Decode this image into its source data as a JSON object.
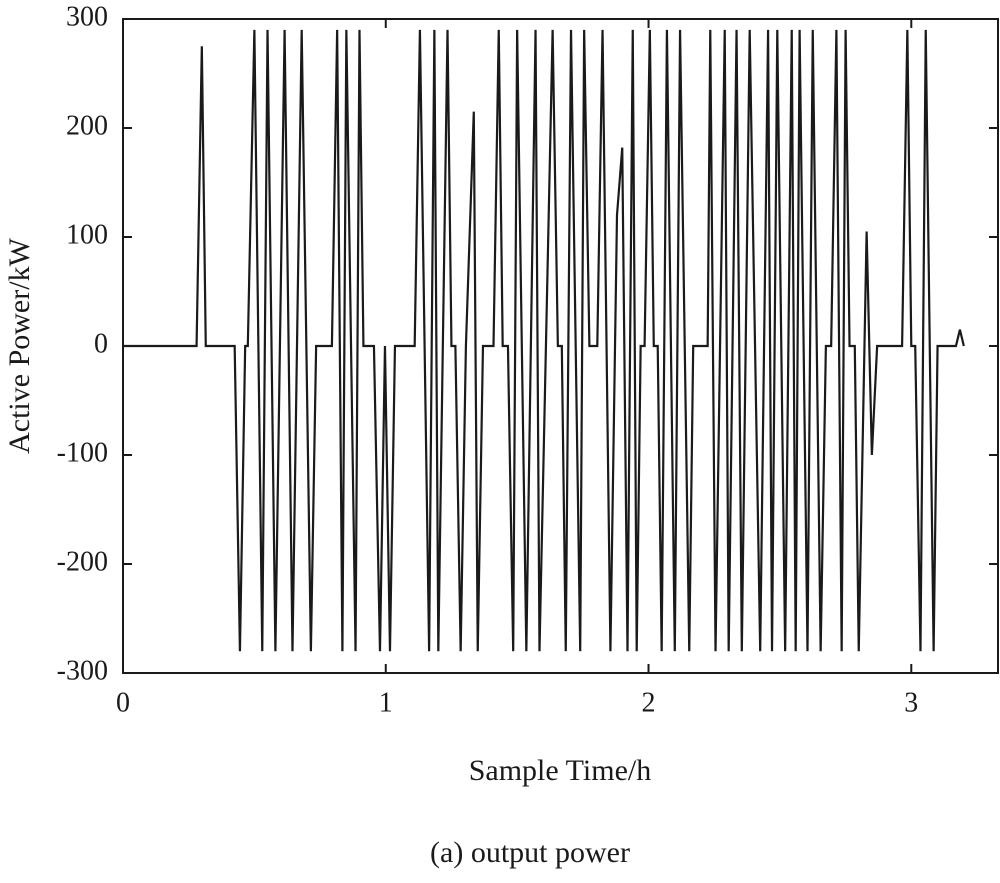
{
  "chart_data": {
    "type": "line",
    "caption": "(a) output power",
    "x_label": "Sample Time/h",
    "y_label": "Active Power/kW",
    "x": [
      0,
      0.28,
      0.3,
      0.315,
      0.425,
      0.445,
      0.465,
      0.475,
      0.5,
      0.53,
      0.55,
      0.58,
      0.615,
      0.645,
      0.68,
      0.715,
      0.735,
      0.795,
      0.815,
      0.835,
      0.85,
      0.885,
      0.9,
      0.915,
      0.955,
      0.978,
      0.997,
      1.016,
      1.035,
      1.11,
      1.13,
      1.165,
      1.185,
      1.2,
      1.235,
      1.25,
      1.265,
      1.285,
      1.305,
      1.335,
      1.35,
      1.37,
      1.41,
      1.43,
      1.445,
      1.465,
      1.485,
      1.5,
      1.535,
      1.57,
      1.585,
      1.635,
      1.655,
      1.67,
      1.685,
      1.705,
      1.74,
      1.755,
      1.775,
      1.805,
      1.825,
      1.855,
      1.88,
      1.9,
      1.92,
      1.94,
      1.955,
      1.97,
      1.985,
      2.005,
      2.02,
      2.035,
      2.05,
      2.07,
      2.1,
      2.12,
      2.155,
      2.17,
      2.225,
      2.235,
      2.255,
      2.29,
      2.305,
      2.335,
      2.355,
      2.385,
      2.425,
      2.455,
      2.47,
      2.49,
      2.52,
      2.545,
      2.56,
      2.575,
      2.605,
      2.625,
      2.655,
      2.675,
      2.695,
      2.715,
      2.735,
      2.75,
      2.765,
      2.785,
      2.8,
      2.83,
      2.85,
      2.87,
      2.965,
      2.985,
      3.0,
      3.015,
      3.035,
      3.055,
      3.085,
      3.1,
      3.17,
      3.185,
      3.2
    ],
    "series": [
      {
        "color": "#1a1a1a",
        "values": [
          0,
          0,
          275,
          0,
          0,
          -280,
          0,
          0,
          290,
          -280,
          290,
          -280,
          290,
          -280,
          290,
          -280,
          0,
          0,
          290,
          -280,
          290,
          -280,
          290,
          0,
          0,
          -280,
          0,
          -280,
          0,
          0,
          290,
          -280,
          290,
          -280,
          290,
          0,
          0,
          -280,
          0,
          215,
          -280,
          0,
          0,
          290,
          0,
          0,
          -280,
          290,
          -280,
          290,
          -280,
          290,
          0,
          0,
          -280,
          290,
          -280,
          290,
          0,
          0,
          290,
          -280,
          120,
          182,
          -280,
          290,
          -280,
          0,
          0,
          290,
          0,
          0,
          -280,
          290,
          -280,
          290,
          -280,
          0,
          0,
          290,
          -280,
          290,
          -280,
          290,
          -280,
          290,
          -280,
          290,
          -280,
          290,
          -280,
          290,
          -280,
          290,
          -280,
          290,
          -280,
          0,
          0,
          290,
          -280,
          290,
          0,
          0,
          -280,
          105,
          -100,
          0,
          0,
          290,
          0,
          0,
          -280,
          290,
          -280,
          0,
          0,
          15,
          0
        ]
      }
    ],
    "xlim": [
      0,
      3.33
    ],
    "xticks": [
      0,
      1,
      2,
      3
    ],
    "ylim": [
      -300,
      300
    ],
    "yticks": [
      -300,
      -200,
      -100,
      0,
      100,
      200,
      300
    ]
  }
}
